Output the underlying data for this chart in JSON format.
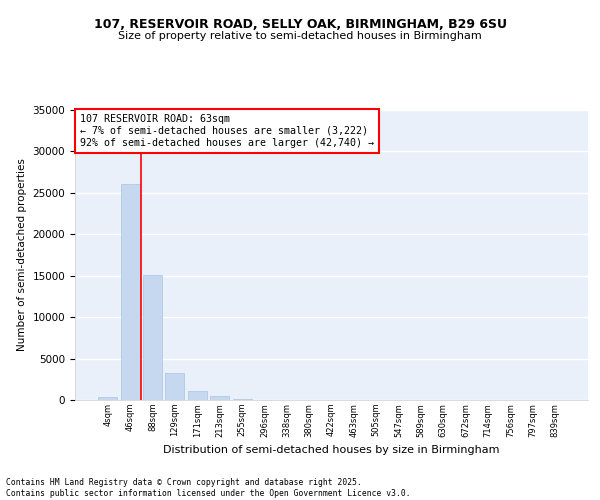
{
  "title1": "107, RESERVOIR ROAD, SELLY OAK, BIRMINGHAM, B29 6SU",
  "title2": "Size of property relative to semi-detached houses in Birmingham",
  "xlabel": "Distribution of semi-detached houses by size in Birmingham",
  "ylabel": "Number of semi-detached properties",
  "categories": [
    "4sqm",
    "46sqm",
    "88sqm",
    "129sqm",
    "171sqm",
    "213sqm",
    "255sqm",
    "296sqm",
    "338sqm",
    "380sqm",
    "422sqm",
    "463sqm",
    "505sqm",
    "547sqm",
    "589sqm",
    "630sqm",
    "672sqm",
    "714sqm",
    "756sqm",
    "797sqm",
    "839sqm"
  ],
  "values": [
    350,
    26100,
    15100,
    3300,
    1050,
    450,
    130,
    30,
    10,
    5,
    3,
    2,
    1,
    0,
    0,
    0,
    0,
    0,
    0,
    0,
    0
  ],
  "bar_color": "#c5d8f0",
  "bar_edge_color": "#a8c4e0",
  "property_size": "63sqm",
  "pct_smaller": 7,
  "num_smaller": "3,222",
  "pct_larger": 92,
  "num_larger": "42,740",
  "annotation_text": "107 RESERVOIR ROAD: 63sqm\n← 7% of semi-detached houses are smaller (3,222)\n92% of semi-detached houses are larger (42,740) →",
  "ylim": [
    0,
    35000
  ],
  "yticks": [
    0,
    5000,
    10000,
    15000,
    20000,
    25000,
    30000,
    35000
  ],
  "background_color": "#eaf0fa",
  "grid_color": "#ffffff",
  "footer": "Contains HM Land Registry data © Crown copyright and database right 2025.\nContains public sector information licensed under the Open Government Licence v3.0."
}
